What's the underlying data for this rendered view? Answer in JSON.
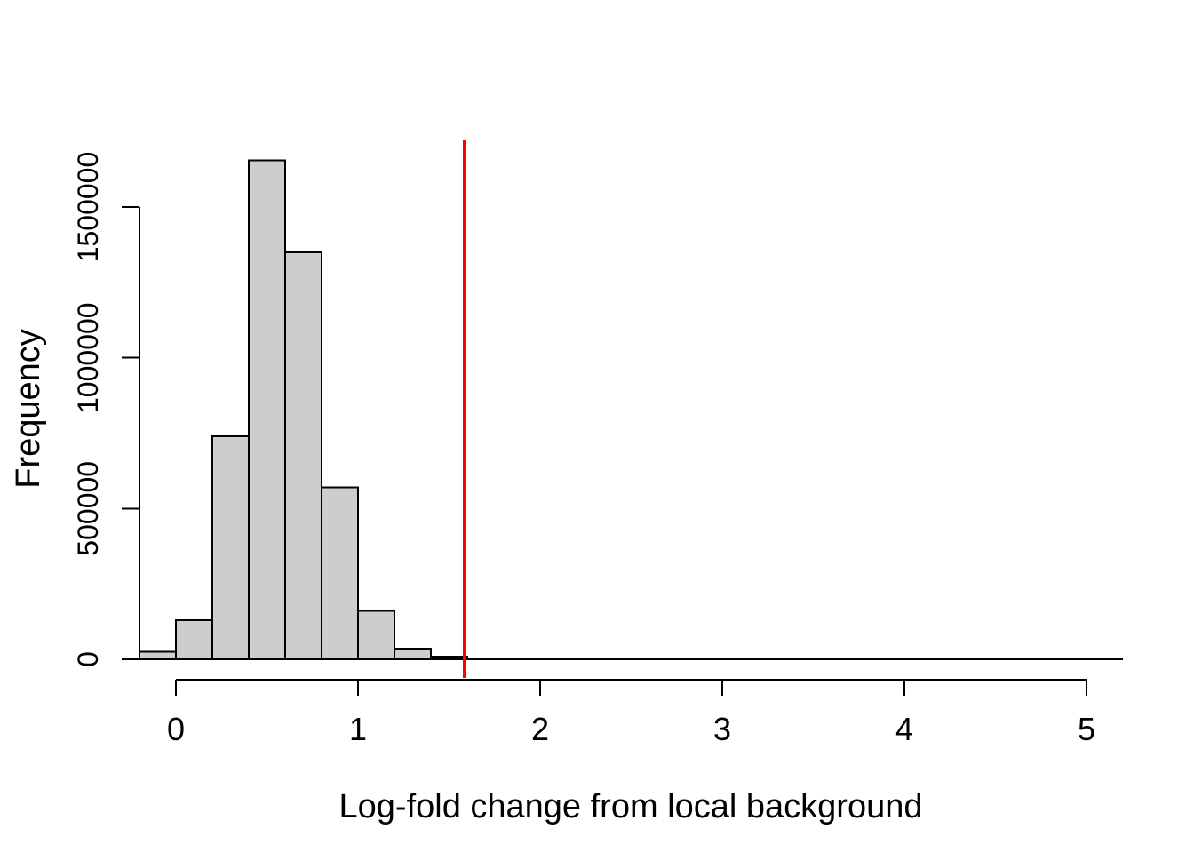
{
  "figure": {
    "background": "#ffffff"
  },
  "chart_data": {
    "type": "bar",
    "subtype": "histogram",
    "xlabel": "Log-fold change from local background",
    "ylabel": "Frequency",
    "xlim": [
      -0.2,
      5.2
    ],
    "ylim": [
      0,
      1655000
    ],
    "grid": false,
    "legend": null,
    "bin_width": 0.2,
    "bin_edges": [
      -0.2,
      0,
      0.2,
      0.4,
      0.6,
      0.8,
      1,
      1.2,
      1.4,
      1.6,
      1.8,
      2,
      2.2,
      2.4,
      2.6,
      2.8,
      3,
      3.2,
      3.4,
      3.6,
      3.8,
      4,
      4.2,
      4.4,
      4.6,
      4.8,
      5,
      5.2
    ],
    "counts": [
      25000,
      130000,
      740000,
      1655000,
      1350000,
      570000,
      160000,
      35000,
      9000,
      0,
      0,
      0,
      0,
      0,
      0,
      0,
      0,
      0,
      0,
      0,
      0,
      0,
      0,
      0,
      0,
      0,
      0
    ],
    "x_ticks": [
      0,
      1,
      2,
      3,
      4,
      5
    ],
    "x_tick_labels": [
      "0",
      "1",
      "2",
      "3",
      "4",
      "5"
    ],
    "y_ticks": [
      0,
      500000,
      1000000,
      1500000
    ],
    "y_tick_labels": [
      "0",
      "500000",
      "1000000",
      "1500000"
    ],
    "threshold_line": {
      "x": 1.585,
      "color": "#ff0000"
    },
    "style": {
      "bar_fill": "#cdcdcd",
      "bar_stroke": "#000000",
      "axis_color": "#000000",
      "text_color": "#000000"
    }
  }
}
